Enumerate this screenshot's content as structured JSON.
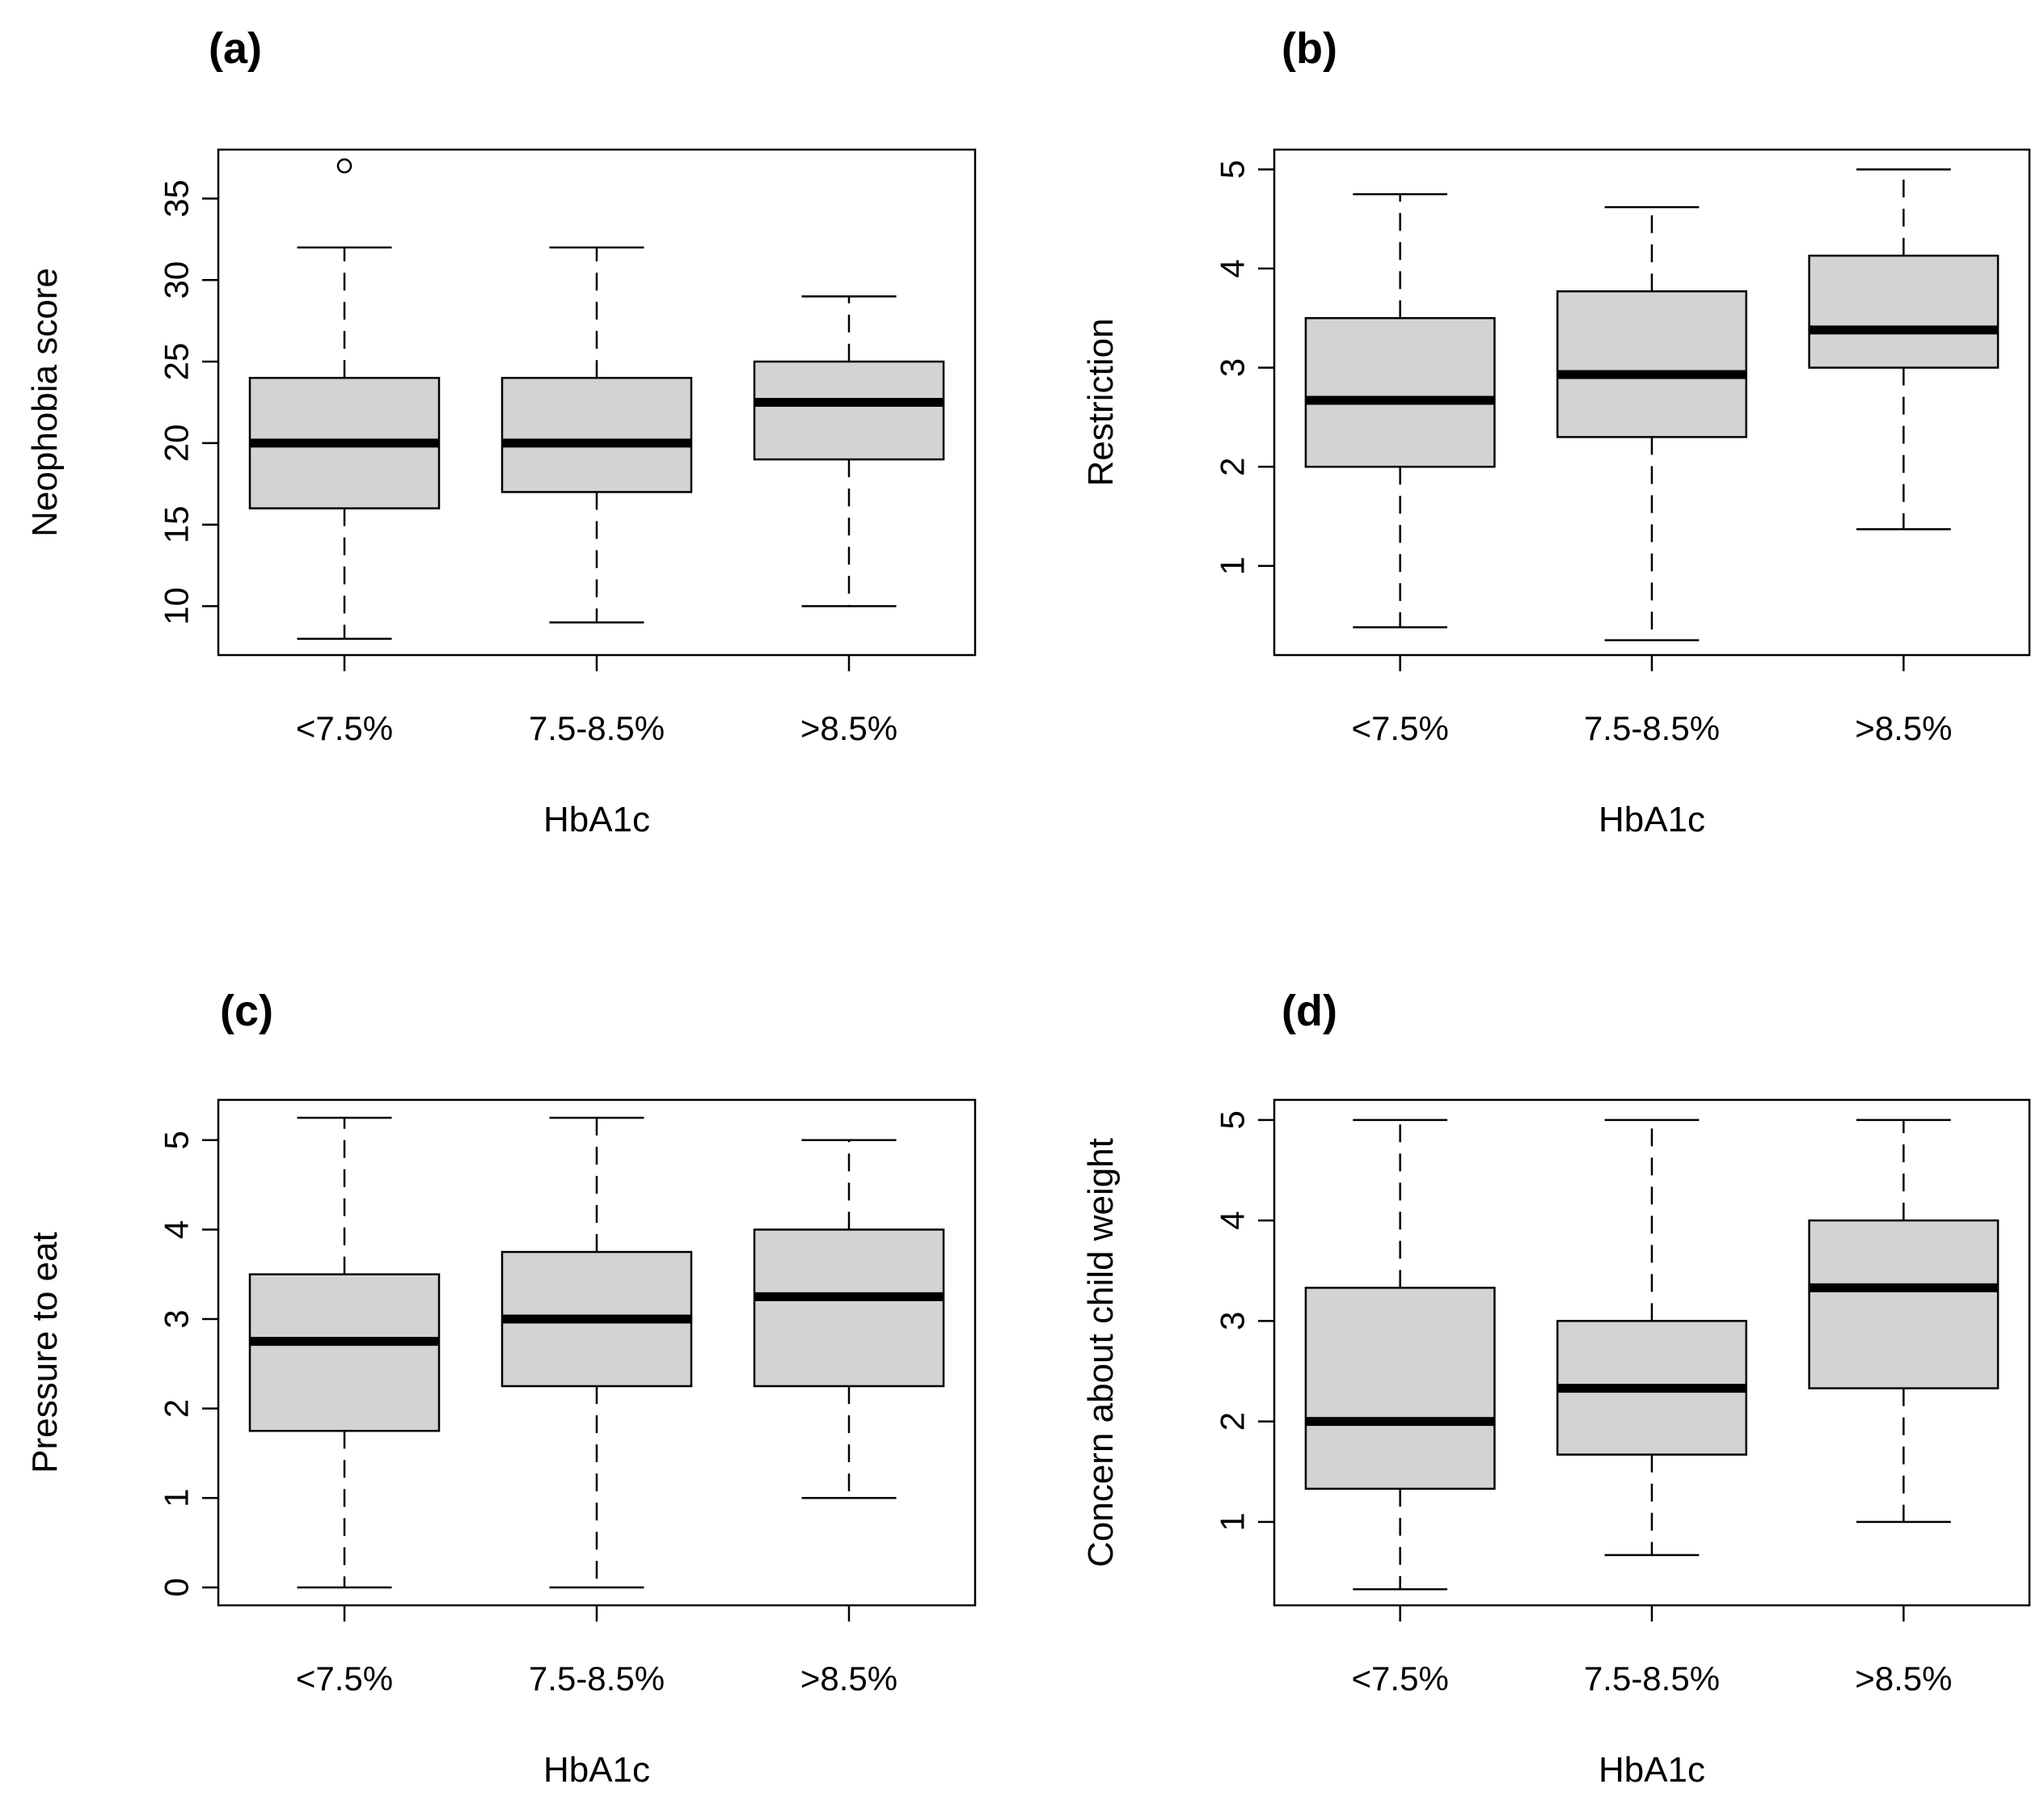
{
  "chart_data": [
    {
      "type": "boxplot",
      "title": "(a)",
      "xlabel": "HbA1c",
      "ylabel": "Neophobia score",
      "categories": [
        "<7.5%",
        "7.5-8.5%",
        ">8.5%"
      ],
      "ylim": [
        7,
        38
      ],
      "yticks": [
        10,
        15,
        20,
        25,
        30,
        35
      ],
      "boxes": [
        {
          "category": "<7.5%",
          "whisker_low": 8,
          "q1": 16,
          "median": 20,
          "q3": 24,
          "whisker_high": 32,
          "outliers": [
            37
          ]
        },
        {
          "category": "7.5-8.5%",
          "whisker_low": 9,
          "q1": 17,
          "median": 20,
          "q3": 24,
          "whisker_high": 32,
          "outliers": []
        },
        {
          "category": ">8.5%",
          "whisker_low": 10,
          "q1": 19,
          "median": 22.5,
          "q3": 25,
          "whisker_high": 29,
          "outliers": []
        }
      ]
    },
    {
      "type": "boxplot",
      "title": "(b)",
      "xlabel": "HbA1c",
      "ylabel": "Restriction",
      "categories": [
        "<7.5%",
        "7.5-8.5%",
        ">8.5%"
      ],
      "ylim": [
        0.1,
        5.2
      ],
      "yticks": [
        1,
        2,
        3,
        4,
        5
      ],
      "boxes": [
        {
          "category": "<7.5%",
          "whisker_low": 0.38,
          "q1": 2.0,
          "median": 2.67,
          "q3": 3.5,
          "whisker_high": 4.75,
          "outliers": []
        },
        {
          "category": "7.5-8.5%",
          "whisker_low": 0.25,
          "q1": 2.3,
          "median": 2.93,
          "q3": 3.77,
          "whisker_high": 4.62,
          "outliers": []
        },
        {
          "category": ">8.5%",
          "whisker_low": 1.37,
          "q1": 3.0,
          "median": 3.38,
          "q3": 4.13,
          "whisker_high": 5.0,
          "outliers": []
        }
      ]
    },
    {
      "type": "boxplot",
      "title": "(c)",
      "xlabel": "HbA1c",
      "ylabel": "Pressure to eat",
      "categories": [
        "<7.5%",
        "7.5-8.5%",
        ">8.5%"
      ],
      "ylim": [
        -0.2,
        5.45
      ],
      "yticks": [
        0,
        1,
        2,
        3,
        4,
        5
      ],
      "boxes": [
        {
          "category": "<7.5%",
          "whisker_low": 0,
          "q1": 1.75,
          "median": 2.75,
          "q3": 3.5,
          "whisker_high": 5.25,
          "outliers": []
        },
        {
          "category": "7.5-8.5%",
          "whisker_low": 0,
          "q1": 2.25,
          "median": 3.0,
          "q3": 3.75,
          "whisker_high": 5.25,
          "outliers": []
        },
        {
          "category": ">8.5%",
          "whisker_low": 1.0,
          "q1": 2.25,
          "median": 3.25,
          "q3": 4.0,
          "whisker_high": 5.0,
          "outliers": []
        }
      ]
    },
    {
      "type": "boxplot",
      "title": "(d)",
      "xlabel": "HbA1c",
      "ylabel": "Concern about child weight",
      "categories": [
        "<7.5%",
        "7.5-8.5%",
        ">8.5%"
      ],
      "ylim": [
        0.17,
        5.2
      ],
      "yticks": [
        1,
        2,
        3,
        4,
        5
      ],
      "boxes": [
        {
          "category": "<7.5%",
          "whisker_low": 0.33,
          "q1": 1.33,
          "median": 2.0,
          "q3": 3.33,
          "whisker_high": 5.0,
          "outliers": []
        },
        {
          "category": "7.5-8.5%",
          "whisker_low": 0.67,
          "q1": 1.67,
          "median": 2.33,
          "q3": 3.0,
          "whisker_high": 5.0,
          "outliers": []
        },
        {
          "category": ">8.5%",
          "whisker_low": 1.0,
          "q1": 2.33,
          "median": 3.33,
          "q3": 4.0,
          "whisker_high": 5.0,
          "outliers": []
        }
      ]
    }
  ]
}
